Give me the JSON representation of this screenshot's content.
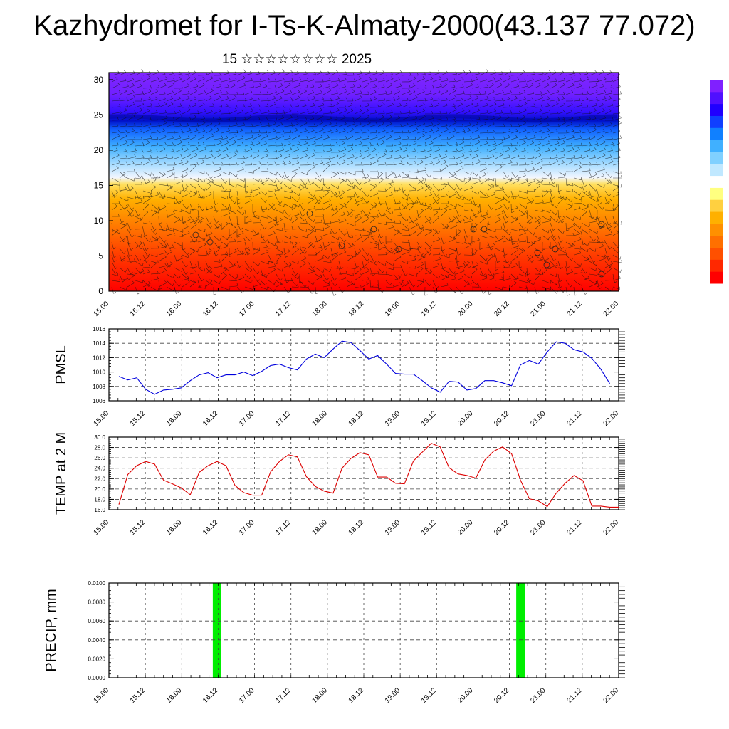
{
  "title": "Kazhydromet for I-Ts-K-Almaty-2000(43.137 77.072)",
  "subtitle": "15 ☆☆☆☆☆☆☆☆ 2025",
  "time_ticks": [
    "15.00",
    "15.12",
    "16.00",
    "16.12",
    "17.00",
    "17.12",
    "18.00",
    "18.12",
    "19.00",
    "19.12",
    "20.00",
    "20.12",
    "21.00",
    "21.12",
    "22.00"
  ],
  "colors": {
    "pmsl_line": "#0000dd",
    "temp_line": "#dd0000",
    "precip_bar": "#00ee00"
  },
  "chart_data": [
    {
      "type": "heatmap",
      "name": "vertical-section",
      "y": [
        0,
        30
      ],
      "ylim": [
        0,
        31
      ],
      "yticks": [
        "0",
        "5",
        "10",
        "15",
        "20",
        "25",
        "30"
      ],
      "color_scale": "red (low levels) - orange - yellow - light blue - blue - violet (high levels)",
      "overlay": "wind barbs",
      "colorbar": [
        "#ff0000",
        "#ff5000",
        "#ff9000",
        "#ffc000",
        "#ffff60",
        "#ffffff",
        "#40c0ff",
        "#1060ff",
        "#2000ff",
        "#8020ff"
      ]
    },
    {
      "type": "line",
      "ylabel": "PMSL",
      "ylim": [
        1006,
        1016
      ],
      "yticks": [
        "1006",
        "1008",
        "1010",
        "1012",
        "1014",
        "1016"
      ],
      "x_hours": [
        0,
        3,
        6,
        9,
        12,
        15,
        18,
        21,
        24,
        27,
        30,
        33,
        36,
        39,
        42,
        45,
        48,
        51,
        54,
        57,
        60,
        63,
        66,
        69,
        72,
        75,
        78,
        81,
        84,
        87,
        90,
        93,
        96,
        99,
        102,
        105,
        108,
        111,
        114,
        117,
        120,
        123,
        126,
        129,
        132,
        135,
        138,
        141,
        144,
        147,
        150,
        153,
        156,
        159,
        162,
        165
      ],
      "values": [
        1009.4,
        1008.9,
        1009.2,
        1007.6,
        1006.9,
        1007.5,
        1007.6,
        1007.8,
        1008.8,
        1009.6,
        1009.9,
        1009.2,
        1009.6,
        1009.6,
        1010.0,
        1009.5,
        1010.1,
        1010.9,
        1011.1,
        1010.6,
        1010.3,
        1011.8,
        1012.5,
        1012.0,
        1013.2,
        1014.3,
        1014.1,
        1013.0,
        1011.8,
        1012.3,
        1011.1,
        1009.8,
        1009.7,
        1009.7,
        1008.8,
        1007.8,
        1007.2,
        1008.7,
        1008.6,
        1007.5,
        1007.7,
        1008.8,
        1008.8,
        1008.5,
        1008.1,
        1011.0,
        1011.6,
        1011.1,
        1012.8,
        1014.2,
        1014.0,
        1013.1,
        1012.8,
        1011.9,
        1010.4,
        1008.4
      ]
    },
    {
      "type": "line",
      "ylabel": "TEMP at 2 M",
      "ylim": [
        16,
        30
      ],
      "yticks": [
        "16.0",
        "18.0",
        "20.0",
        "22.0",
        "24.0",
        "26.0",
        "28.0",
        "30.0"
      ],
      "x_hours": [
        0,
        3,
        6,
        9,
        12,
        15,
        18,
        21,
        24,
        27,
        30,
        33,
        36,
        39,
        42,
        45,
        48,
        51,
        54,
        57,
        60,
        63,
        66,
        69,
        72,
        75,
        78,
        81,
        84,
        87,
        90,
        93,
        96,
        99,
        102,
        105,
        108,
        111,
        114,
        117,
        120,
        123,
        126,
        129,
        132,
        135,
        138,
        141,
        144,
        147,
        150,
        153,
        156,
        159,
        162,
        165,
        168
      ],
      "values": [
        17.0,
        22.8,
        24.5,
        25.3,
        24.8,
        21.7,
        21.0,
        20.2,
        18.9,
        23.2,
        24.5,
        25.3,
        24.5,
        20.7,
        19.3,
        18.8,
        18.8,
        23.3,
        25.3,
        26.6,
        26.2,
        22.4,
        20.5,
        19.6,
        19.2,
        24.0,
        25.9,
        27.0,
        26.6,
        22.3,
        22.3,
        21.1,
        21.0,
        25.4,
        27.1,
        28.8,
        28.1,
        24.1,
        22.9,
        22.6,
        22.1,
        25.6,
        27.3,
        28.1,
        26.8,
        21.7,
        18.1,
        17.7,
        16.6,
        19.2,
        21.1,
        22.6,
        21.6,
        16.7,
        16.7,
        16.5,
        16.5
      ]
    },
    {
      "type": "bar",
      "ylabel": "PRECIP, mm",
      "ylim": [
        0,
        0.01
      ],
      "yticks": [
        "0.0000",
        "0.0020",
        "0.0040",
        "0.0060",
        "0.0080",
        "0.0100"
      ],
      "bars": [
        {
          "hour": 33,
          "value": 0.01
        },
        {
          "hour": 135,
          "value": 0.01
        }
      ]
    }
  ]
}
